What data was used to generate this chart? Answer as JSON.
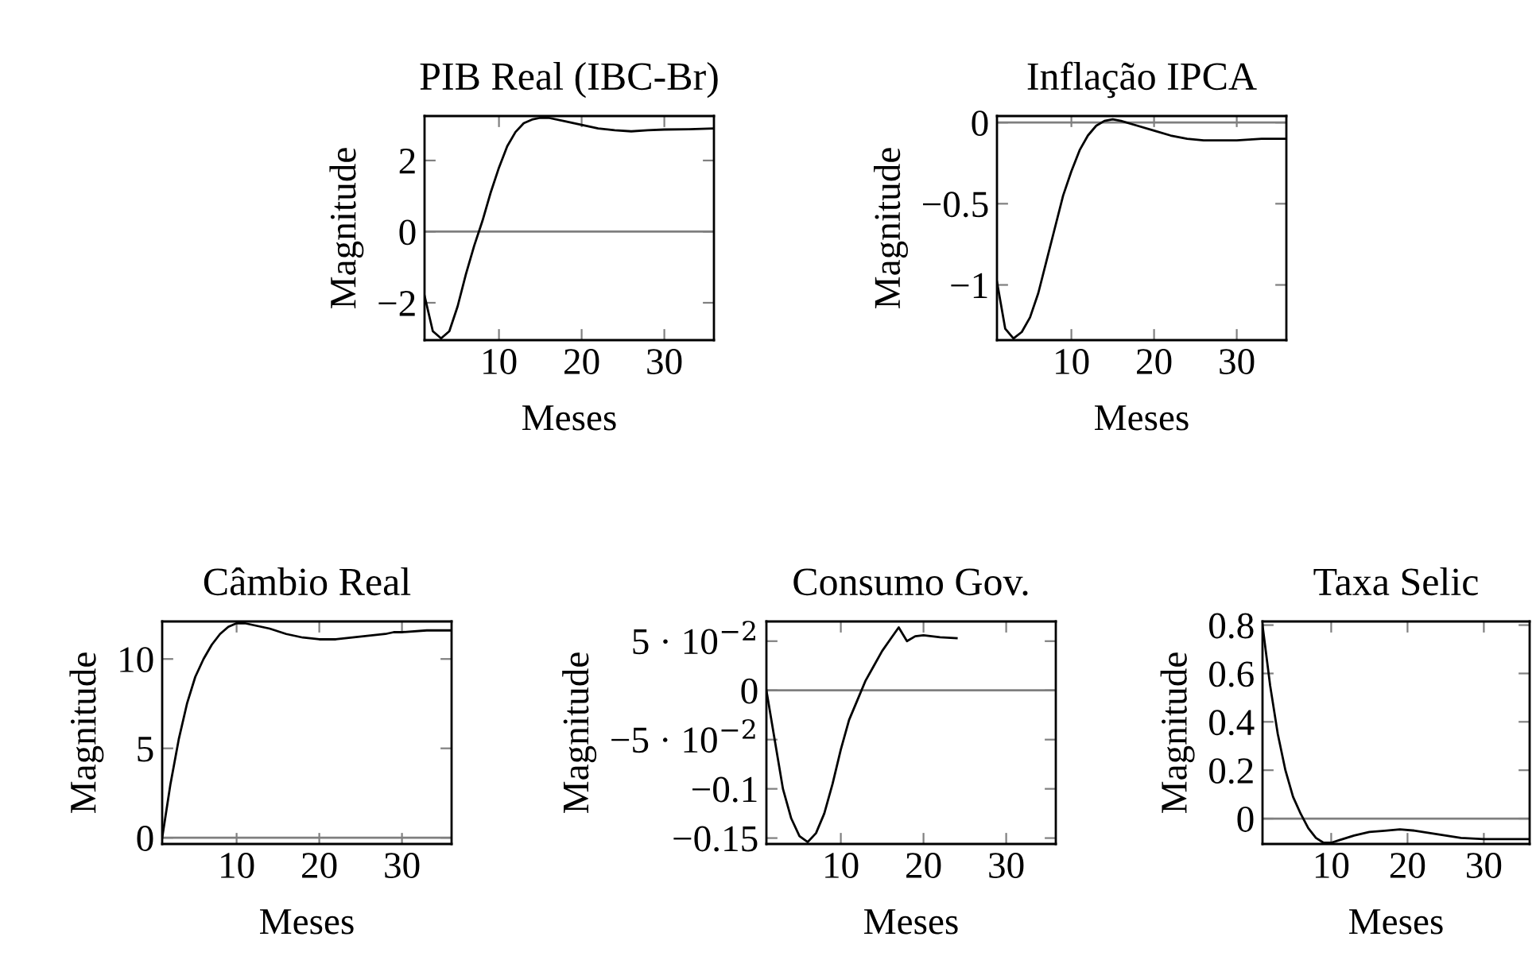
{
  "chart_data": [
    {
      "type": "line",
      "title": "PIB Real (IBC-Br)",
      "xlabel": "Meses",
      "ylabel": "Magnitude",
      "xlim": [
        1,
        36
      ],
      "ylim": [
        -3.05,
        3.25
      ],
      "xticks": [
        10,
        20,
        30
      ],
      "yticks": [
        {
          "value": -2,
          "label": "−2"
        },
        0,
        2
      ],
      "grid": false,
      "legend": false,
      "marker": "none",
      "line_style": "solid",
      "ref_lines": [
        {
          "axis": "y",
          "value": 0,
          "color": "#7f7f7f"
        }
      ],
      "series": [
        {
          "color": "#000000",
          "x": [
            1,
            2,
            3,
            4,
            5,
            6,
            7,
            8,
            9,
            10,
            11,
            12,
            13,
            14,
            15,
            16,
            18,
            20,
            22,
            24,
            26,
            28,
            30,
            33,
            36
          ],
          "values": [
            -1.8,
            -2.8,
            -3.0,
            -2.8,
            -2.1,
            -1.2,
            -0.4,
            0.3,
            1.1,
            1.8,
            2.4,
            2.8,
            3.05,
            3.15,
            3.2,
            3.2,
            3.1,
            3.0,
            2.9,
            2.85,
            2.82,
            2.85,
            2.87,
            2.88,
            2.9
          ]
        }
      ]
    },
    {
      "type": "line",
      "title": "Inflação IPCA",
      "xlabel": "Meses",
      "ylabel": "Magnitude",
      "xlim": [
        1,
        36
      ],
      "ylim": [
        -1.34,
        0.04
      ],
      "xticks": [
        10,
        20,
        30
      ],
      "yticks": [
        {
          "value": -1,
          "label": "−1"
        },
        {
          "value": -0.5,
          "label": "−0.5"
        },
        0
      ],
      "grid": false,
      "legend": false,
      "marker": "none",
      "line_style": "solid",
      "ref_lines": [
        {
          "axis": "y",
          "value": 0,
          "color": "#7f7f7f"
        }
      ],
      "series": [
        {
          "color": "#000000",
          "x": [
            1,
            2,
            3,
            4,
            5,
            6,
            7,
            8,
            9,
            10,
            11,
            12,
            13,
            14,
            15,
            16,
            18,
            20,
            22,
            24,
            26,
            30,
            33,
            36
          ],
          "values": [
            -0.98,
            -1.27,
            -1.33,
            -1.29,
            -1.2,
            -1.05,
            -0.85,
            -0.65,
            -0.45,
            -0.3,
            -0.17,
            -0.08,
            -0.02,
            0.01,
            0.02,
            0.01,
            -0.02,
            -0.05,
            -0.08,
            -0.1,
            -0.11,
            -0.11,
            -0.1,
            -0.1
          ]
        }
      ]
    },
    {
      "type": "line",
      "title": "Câmbio Real",
      "xlabel": "Meses",
      "ylabel": "Magnitude",
      "xlim": [
        1,
        36
      ],
      "ylim": [
        -0.35,
        12.1
      ],
      "xticks": [
        10,
        20,
        30
      ],
      "yticks": [
        0,
        5,
        10
      ],
      "grid": false,
      "legend": false,
      "marker": "none",
      "line_style": "solid",
      "ref_lines": [
        {
          "axis": "y",
          "value": 0,
          "color": "#7f7f7f"
        }
      ],
      "series": [
        {
          "color": "#000000",
          "x": [
            1,
            2,
            3,
            4,
            5,
            6,
            7,
            8,
            9,
            10,
            11,
            12,
            14,
            16,
            18,
            20,
            22,
            24,
            26,
            28,
            29,
            30,
            33,
            36
          ],
          "values": [
            0,
            3,
            5.5,
            7.5,
            9,
            10,
            10.8,
            11.4,
            11.8,
            12,
            12,
            11.9,
            11.7,
            11.4,
            11.2,
            11.1,
            11.1,
            11.2,
            11.3,
            11.4,
            11.5,
            11.5,
            11.6,
            11.6
          ]
        }
      ]
    },
    {
      "type": "line",
      "title": "Consumo Gov.",
      "xlabel": "Meses",
      "ylabel": "Magnitude",
      "xlim": [
        1,
        36
      ],
      "ylim": [
        -0.156,
        0.07
      ],
      "xticks": [
        10,
        20,
        30
      ],
      "yticks": [
        {
          "value": -0.15,
          "label": "−0.15"
        },
        {
          "value": -0.1,
          "label": "−0.1"
        },
        {
          "value": -0.05,
          "label": "−5 · 10$^{−2}$"
        },
        0,
        {
          "value": 0.05,
          "label": "5 · 10$^{−2}$"
        }
      ],
      "grid": false,
      "legend": false,
      "marker": "none",
      "line_style": "solid",
      "ref_lines": [
        {
          "axis": "y",
          "value": 0,
          "color": "#7f7f7f"
        }
      ],
      "series": [
        {
          "color": "#000000",
          "x": [
            1,
            2,
            3,
            4,
            5,
            6,
            7,
            8,
            9,
            10,
            11,
            12,
            13,
            14,
            15,
            16,
            17,
            18,
            19,
            20,
            22,
            24
          ],
          "values": [
            0,
            -0.05,
            -0.1,
            -0.13,
            -0.148,
            -0.154,
            -0.145,
            -0.125,
            -0.095,
            -0.06,
            -0.03,
            -0.01,
            0.01,
            0.025,
            0.04,
            0.052,
            0.064,
            0.05,
            0.055,
            0.056,
            0.054,
            0.053
          ]
        }
      ]
    },
    {
      "type": "line",
      "title": "Taxa Selic",
      "xlabel": "Meses",
      "ylabel": "Magnitude",
      "xlim": [
        1,
        36
      ],
      "ylim": [
        -0.105,
        0.815
      ],
      "xticks": [
        10,
        20,
        30
      ],
      "yticks": [
        0,
        0.2,
        0.4,
        0.6,
        0.8
      ],
      "grid": false,
      "legend": false,
      "marker": "none",
      "line_style": "solid",
      "ref_lines": [
        {
          "axis": "y",
          "value": 0,
          "color": "#7f7f7f"
        }
      ],
      "series": [
        {
          "color": "#000000",
          "x": [
            1,
            2,
            3,
            4,
            5,
            6,
            7,
            8,
            9,
            10,
            11,
            13,
            15,
            17,
            19,
            21,
            24,
            27,
            30,
            33,
            36
          ],
          "values": [
            0.8,
            0.55,
            0.35,
            0.2,
            0.09,
            0.02,
            -0.04,
            -0.08,
            -0.1,
            -0.1,
            -0.09,
            -0.07,
            -0.055,
            -0.05,
            -0.045,
            -0.05,
            -0.065,
            -0.08,
            -0.085,
            -0.085,
            -0.085
          ]
        }
      ]
    }
  ]
}
